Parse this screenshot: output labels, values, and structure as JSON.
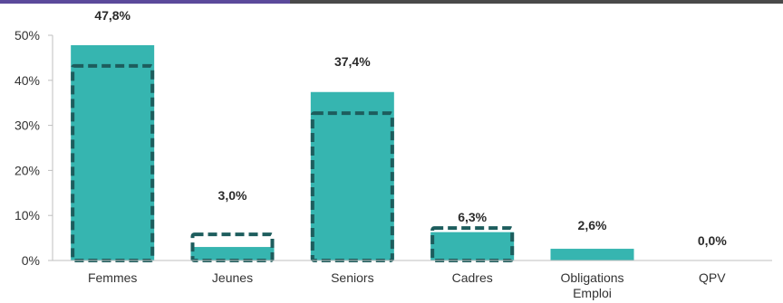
{
  "chart_data": {
    "type": "bar",
    "categories": [
      "Femmes",
      "Jeunes",
      "Seniors",
      "Cadres",
      "Obligations\nEmploi",
      "QPV"
    ],
    "values": [
      47.8,
      3.0,
      37.4,
      6.3,
      2.6,
      0.0
    ],
    "value_labels": [
      "47,8%",
      "3,0%",
      "37,4%",
      "6,3%",
      "2,6%",
      "0,0%"
    ],
    "reference_values": [
      43.2,
      5.8,
      32.7,
      7.2,
      null,
      null
    ],
    "ylim": [
      0,
      50
    ],
    "yticks": [
      0,
      10,
      20,
      30,
      40,
      50
    ],
    "ytick_labels": [
      "0%",
      "10%",
      "20%",
      "30%",
      "40%",
      "50%"
    ],
    "colors": {
      "bar": "#36b5b0",
      "reference": "#1d5d5d",
      "axis": "#bfbfbf",
      "text": "#333333"
    },
    "grid": false,
    "legend": "none"
  }
}
